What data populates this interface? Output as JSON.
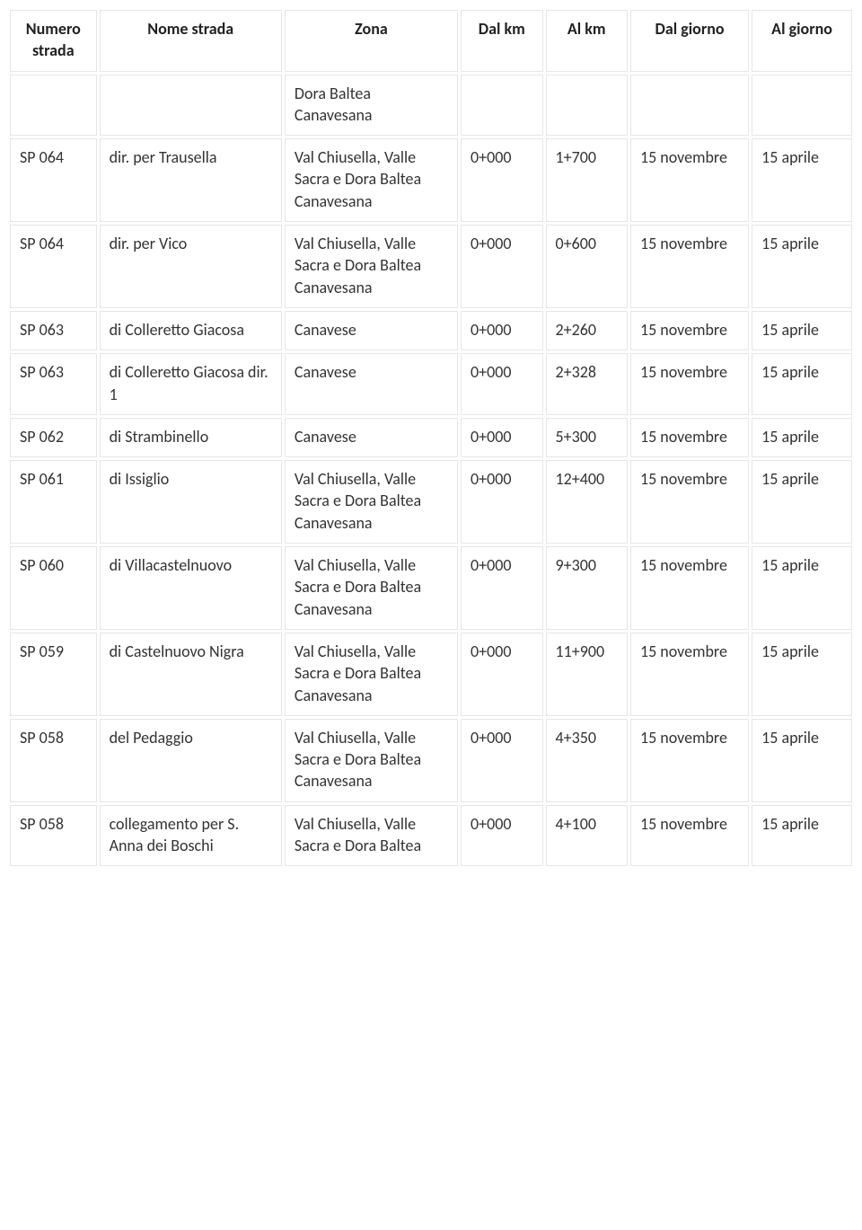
{
  "table": {
    "columns": [
      {
        "key": "numero",
        "label": "Numero strada"
      },
      {
        "key": "nome",
        "label": "Nome strada"
      },
      {
        "key": "zona",
        "label": "Zona"
      },
      {
        "key": "dal_km",
        "label": "Dal km"
      },
      {
        "key": "al_km",
        "label": "Al km"
      },
      {
        "key": "dal_giorno",
        "label": "Dal giorno"
      },
      {
        "key": "al_giorno",
        "label": "Al giorno"
      }
    ],
    "rows": [
      {
        "numero": "",
        "nome": "",
        "zona": "Dora Baltea Canavesana",
        "dal_km": "",
        "al_km": "",
        "dal_giorno": "",
        "al_giorno": ""
      },
      {
        "numero": "SP 064",
        "nome": "dir. per Trausella",
        "zona": "Val Chiusella, Valle Sacra e Dora Baltea Canavesana",
        "dal_km": "0+000",
        "al_km": "1+700",
        "dal_giorno": "15 novembre",
        "al_giorno": "15 aprile"
      },
      {
        "numero": "SP 064",
        "nome": "dir. per Vico",
        "zona": "Val Chiusella, Valle Sacra e Dora Baltea Canavesana",
        "dal_km": "0+000",
        "al_km": "0+600",
        "dal_giorno": "15 novembre",
        "al_giorno": "15 aprile"
      },
      {
        "numero": "SP 063",
        "nome": "di Colleretto Giacosa",
        "zona": "Canavese",
        "dal_km": "0+000",
        "al_km": "2+260",
        "dal_giorno": "15 novembre",
        "al_giorno": "15 aprile"
      },
      {
        "numero": "SP 063",
        "nome": "di Colleretto Giacosa dir. 1",
        "zona": "Canavese",
        "dal_km": "0+000",
        "al_km": "2+328",
        "dal_giorno": "15 novembre",
        "al_giorno": "15 aprile"
      },
      {
        "numero": "SP 062",
        "nome": "di Strambinello",
        "zona": "Canavese",
        "dal_km": "0+000",
        "al_km": "5+300",
        "dal_giorno": "15 novembre",
        "al_giorno": "15 aprile"
      },
      {
        "numero": "SP 061",
        "nome": "di Issiglio",
        "zona": "Val Chiusella, Valle Sacra e Dora Baltea Canavesana",
        "dal_km": "0+000",
        "al_km": "12+400",
        "dal_giorno": "15 novembre",
        "al_giorno": "15 aprile"
      },
      {
        "numero": "SP 060",
        "nome": "di Villacastelnuovo",
        "zona": "Val Chiusella, Valle Sacra e Dora Baltea Canavesana",
        "dal_km": "0+000",
        "al_km": "9+300",
        "dal_giorno": "15 novembre",
        "al_giorno": "15 aprile"
      },
      {
        "numero": "SP 059",
        "nome": "di Castelnuovo Nigra",
        "zona": "Val Chiusella, Valle Sacra e Dora Baltea Canavesana",
        "dal_km": "0+000",
        "al_km": "11+900",
        "dal_giorno": "15 novembre",
        "al_giorno": "15 aprile"
      },
      {
        "numero": "SP 058",
        "nome": "del Pedaggio",
        "zona": "Val Chiusella, Valle Sacra e Dora Baltea Canavesana",
        "dal_km": "0+000",
        "al_km": "4+350",
        "dal_giorno": "15 novembre",
        "al_giorno": "15 aprile"
      },
      {
        "numero": "SP 058",
        "nome": "collegamento per S. Anna dei Boschi",
        "zona": "Val Chiusella, Valle Sacra e Dora Baltea",
        "dal_km": "0+000",
        "al_km": "4+100",
        "dal_giorno": "15 novembre",
        "al_giorno": "15 aprile"
      }
    ],
    "style": {
      "font_family": "Calibri",
      "base_font_size_pt": 13,
      "border_color": "#e6e6e6",
      "text_color": "#333333",
      "background_color": "#ffffff",
      "column_widths_pct": [
        9.5,
        20,
        19,
        9,
        9,
        13,
        11
      ]
    }
  }
}
